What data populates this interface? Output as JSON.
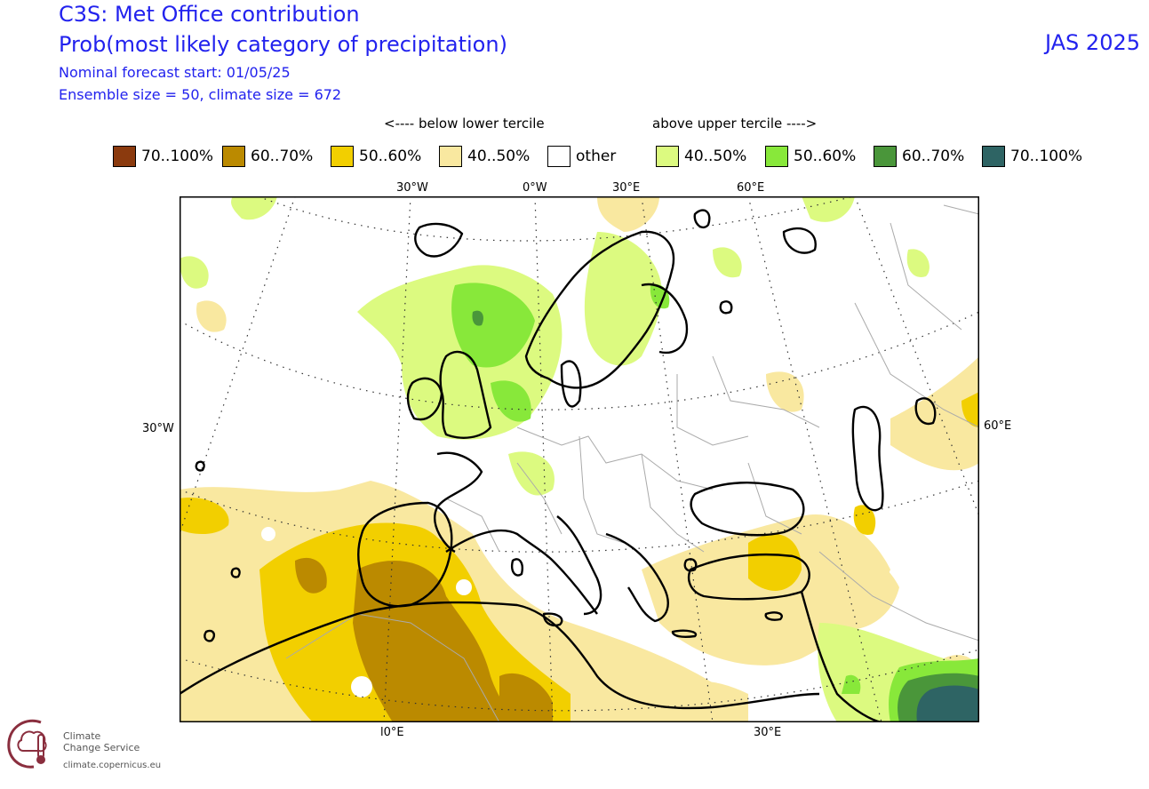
{
  "header": {
    "title": "C3S: Met Office contribution",
    "subtitle": "Prob(most likely category of precipitation)",
    "forecast_start": "Nominal forecast start: 01/05/25",
    "ensemble": "Ensemble size = 50, climate size = 672",
    "season": "JAS 2025"
  },
  "legend": {
    "below_label": "<---- below lower tercile",
    "above_label": "above upper tercile ---->",
    "items": [
      {
        "label": "70..100%",
        "color": "#8b3a0e"
      },
      {
        "label": "60..70%",
        "color": "#bb8a00"
      },
      {
        "label": "50..60%",
        "color": "#f2cf00"
      },
      {
        "label": "40..50%",
        "color": "#f9e8a0"
      },
      {
        "label": "other",
        "color": "#ffffff"
      },
      {
        "label": "40..50%",
        "color": "#dcfa80"
      },
      {
        "label": "50..60%",
        "color": "#88e83a"
      },
      {
        "label": "60..70%",
        "color": "#4a963a"
      },
      {
        "label": "70..100%",
        "color": "#2e6464"
      }
    ]
  },
  "map": {
    "top_labels": [
      "30°W",
      "0°W",
      "30°E",
      "60°E"
    ],
    "left_label": "30°W",
    "right_label": "60°E",
    "bottom_labels": [
      "l0°E",
      "30°E"
    ]
  },
  "logo": {
    "line1": "Climate",
    "line2": "Change Service",
    "url": "climate.copernicus.eu"
  }
}
